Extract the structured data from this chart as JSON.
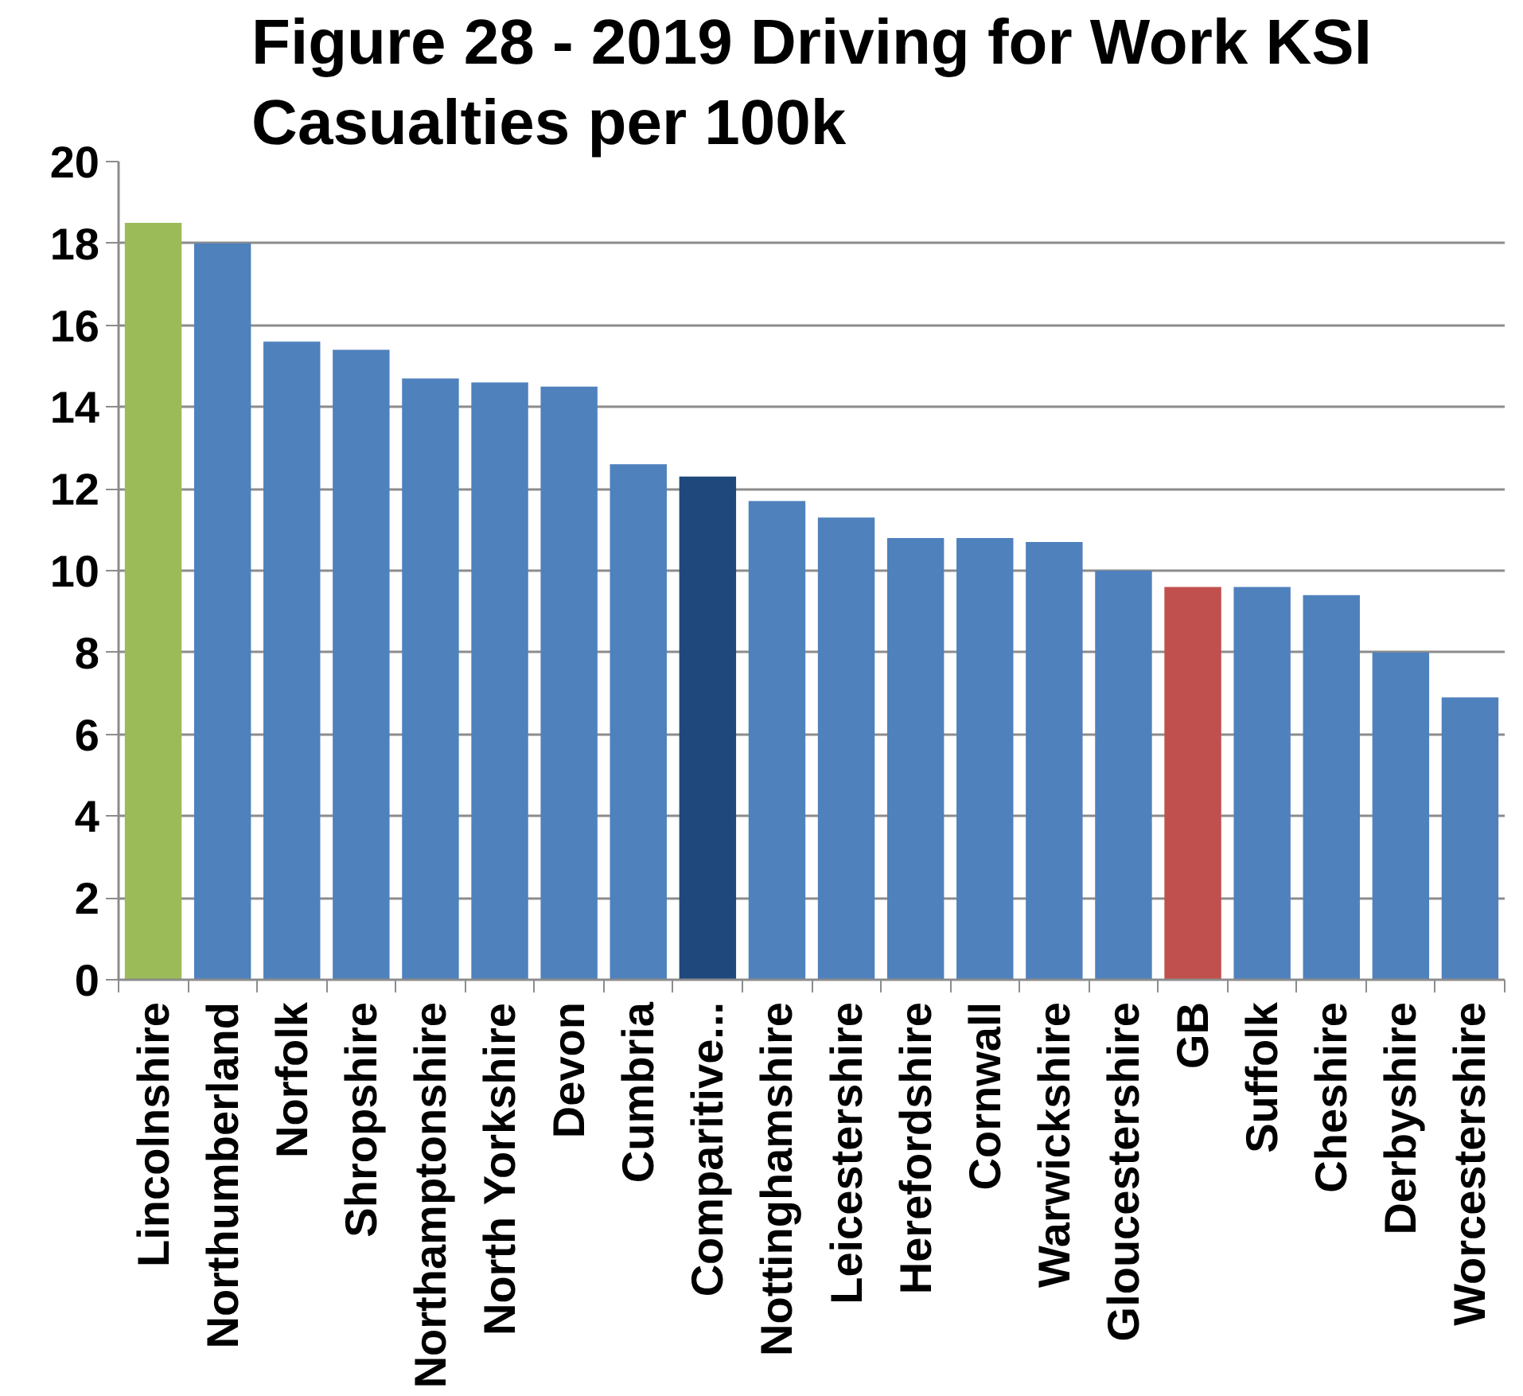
{
  "chart_data": {
    "type": "bar",
    "title": "Figure 28 - 2019 Driving for Work KSI Casualties per 100k",
    "categories": [
      "Lincolnshire",
      "Northumberland",
      "Norfolk",
      "Shropshire",
      "Northamptonshire",
      "North Yorkshire",
      "Devon",
      "Cumbria",
      "Comparitive...",
      "Nottinghamshire",
      "Leicestershire",
      "Herefordshire",
      "Cornwall",
      "Warwickshire",
      "Gloucestershire",
      "GB",
      "Suffolk",
      "Cheshire",
      "Derbyshire",
      "Worcestershire"
    ],
    "values": [
      18.5,
      18.0,
      15.6,
      15.4,
      14.7,
      14.6,
      14.5,
      12.6,
      12.3,
      11.7,
      11.3,
      10.8,
      10.8,
      10.7,
      10.0,
      9.6,
      9.6,
      9.4,
      8.0,
      6.9
    ],
    "colors": [
      "#9bbb59",
      "#4f81bd",
      "#4f81bd",
      "#4f81bd",
      "#4f81bd",
      "#4f81bd",
      "#4f81bd",
      "#4f81bd",
      "#1f497d",
      "#4f81bd",
      "#4f81bd",
      "#4f81bd",
      "#4f81bd",
      "#4f81bd",
      "#4f81bd",
      "#c0504d",
      "#4f81bd",
      "#4f81bd",
      "#4f81bd",
      "#4f81bd"
    ],
    "ylim": [
      0,
      20
    ],
    "yticks": [
      0,
      2,
      4,
      6,
      8,
      10,
      12,
      14,
      16,
      18,
      20
    ],
    "grid": "y"
  }
}
